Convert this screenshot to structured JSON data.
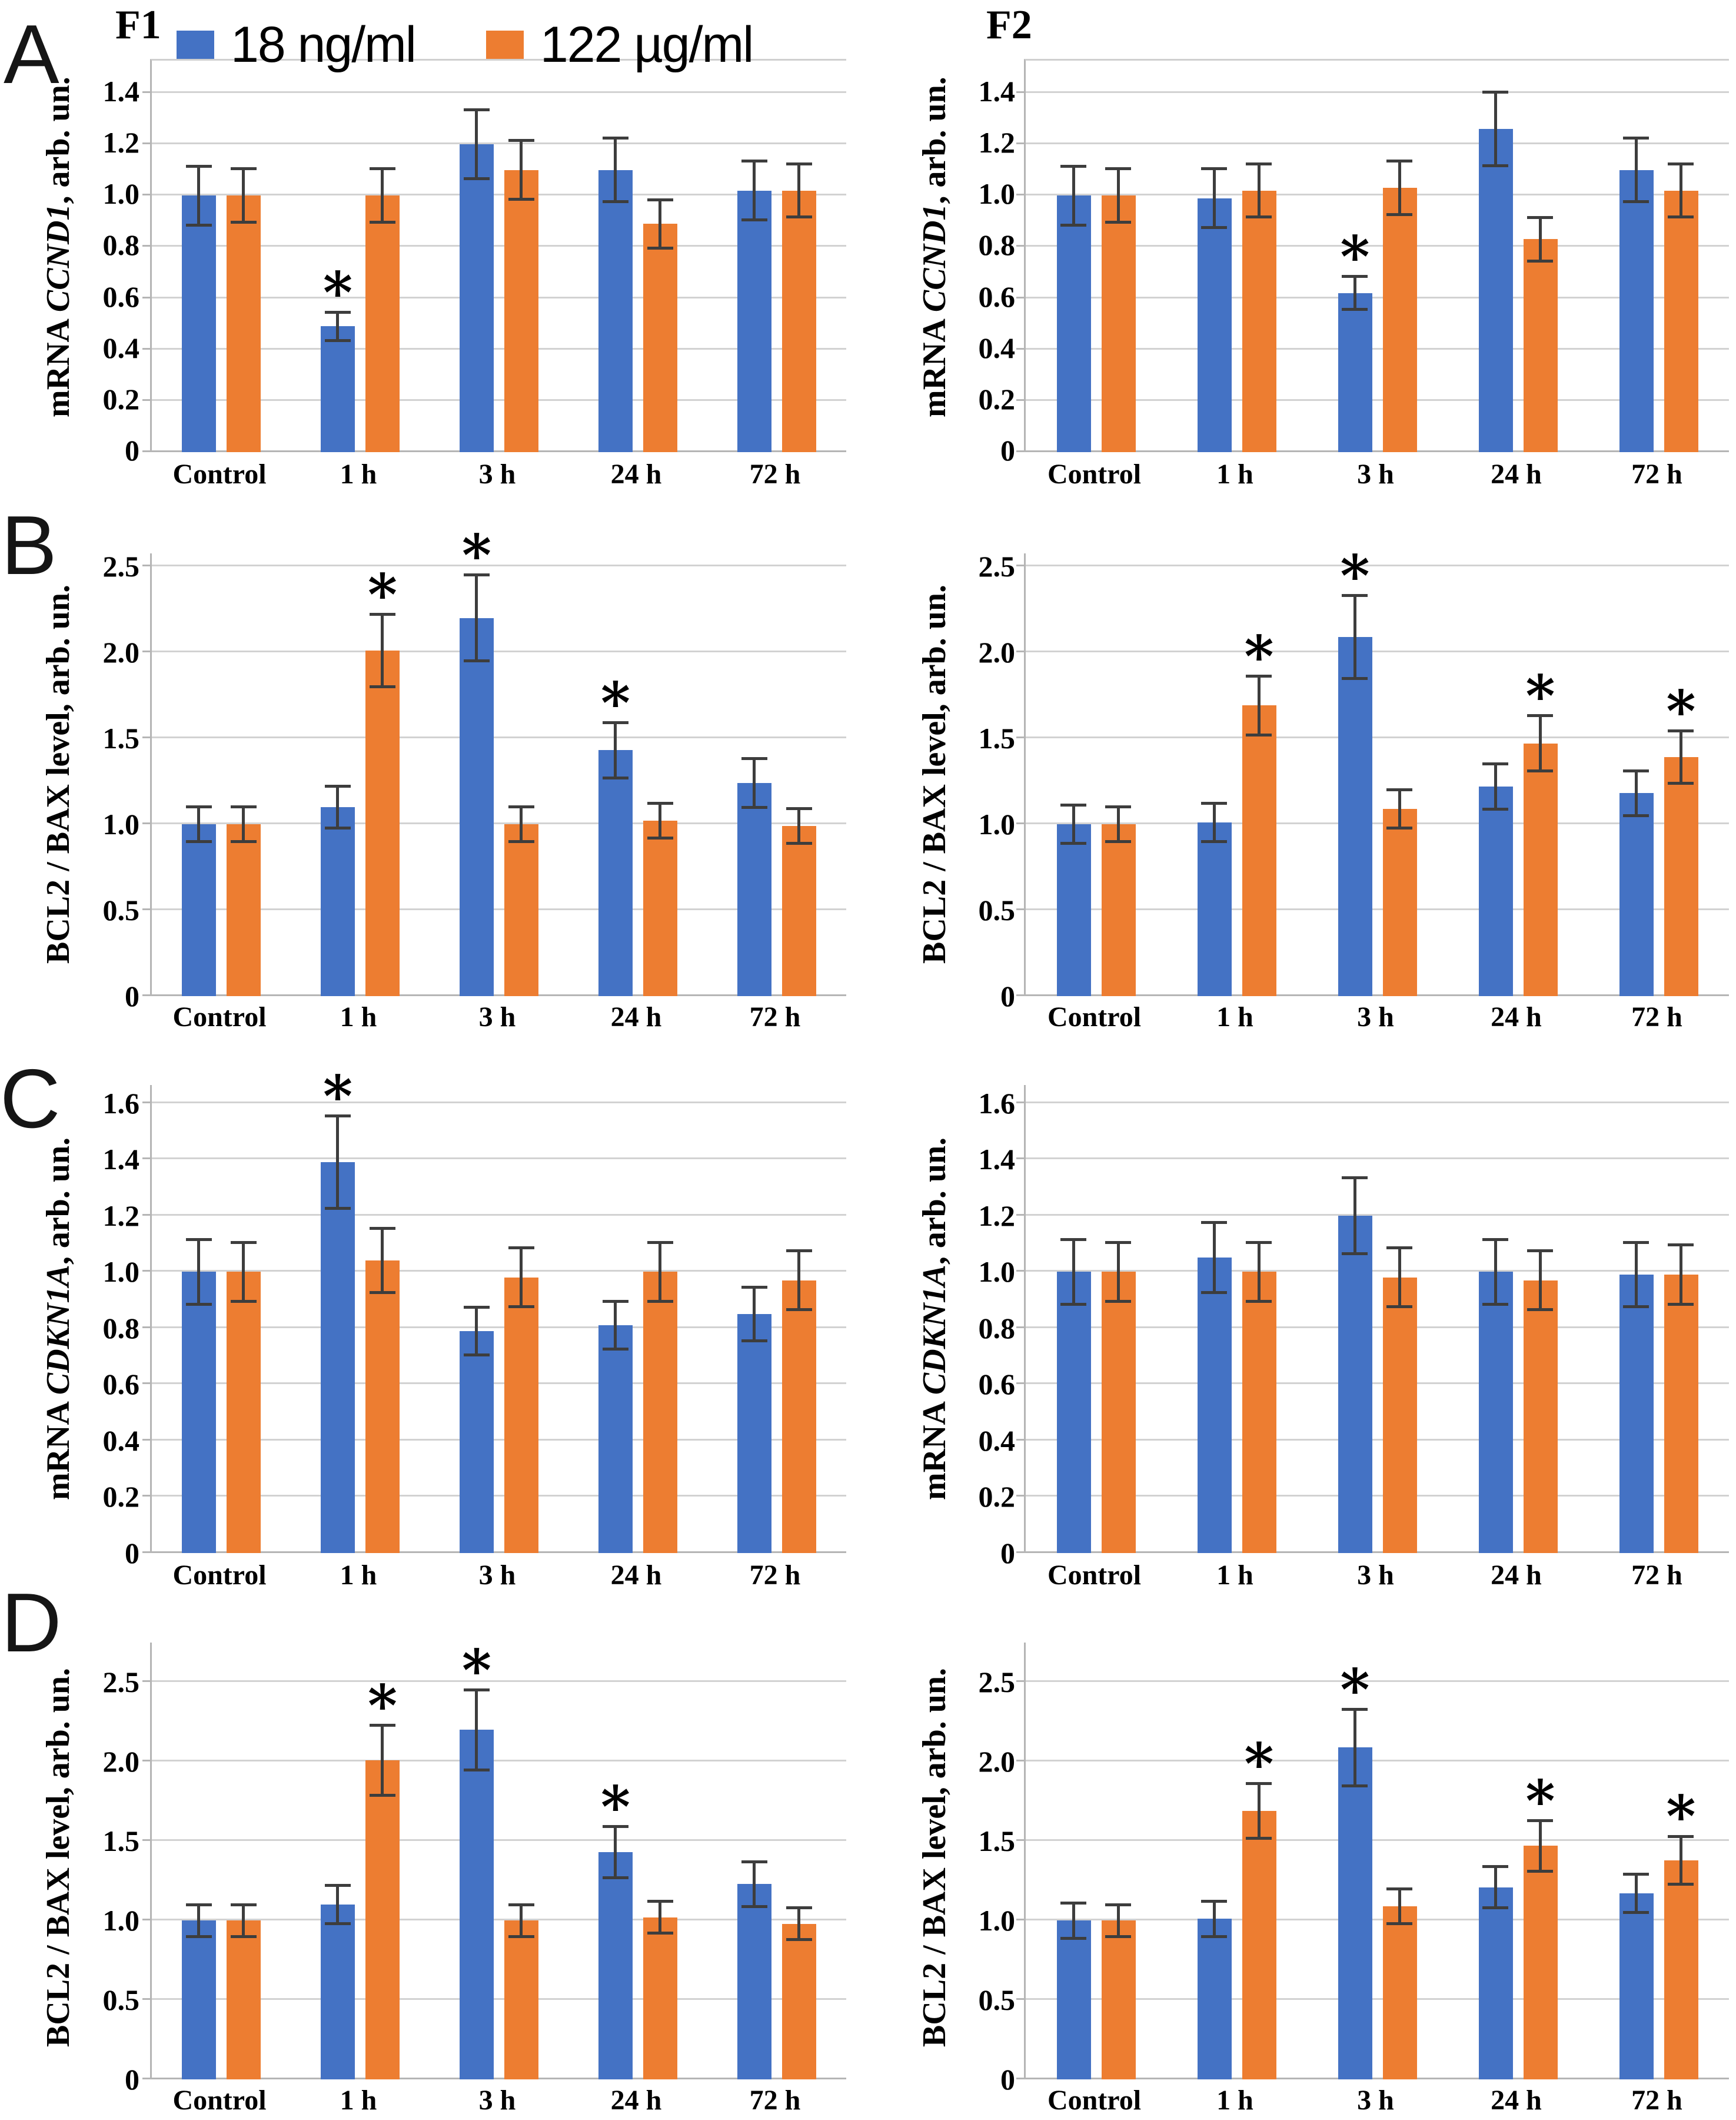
{
  "figure": {
    "panel_letters": [
      "A",
      "B",
      "C",
      "D"
    ],
    "column_labels": [
      "F1",
      "F2"
    ],
    "legend": {
      "items": [
        {
          "label": "18 ng/ml",
          "color": "#4472C4"
        },
        {
          "label": "122 µg/ml",
          "color": "#ED7D31"
        }
      ]
    },
    "colors": {
      "series_blue": "#4472C4",
      "series_orange": "#ED7D31",
      "gridline": "#D2D2D2",
      "axis": "#B5B5B5",
      "error_bar": "#3D3D3D"
    }
  },
  "chart_data": [
    {
      "type": "bar",
      "panel": "A",
      "column": "F1",
      "ylabel": [
        {
          "text": "mRNA ",
          "italic": false
        },
        {
          "text": "CCND1",
          "italic": true
        },
        {
          "text": ", arb. un.",
          "italic": false
        }
      ],
      "ylim": [
        0,
        1.4
      ],
      "headroom": 1.09,
      "grid": true,
      "yticks": [
        "1.4",
        "1.2",
        "1.0",
        "0.8",
        "0.6",
        "0.4",
        "0.2",
        "0"
      ],
      "categories": [
        "Control",
        "1 h",
        "3 h",
        "24 h",
        "72 h"
      ],
      "series": [
        {
          "name": "18 ng/ml",
          "color": "#4472C4",
          "values": [
            1.0,
            0.49,
            1.2,
            1.1,
            1.02
          ],
          "errors": [
            0.12,
            0.06,
            0.14,
            0.13,
            0.12
          ],
          "sig": [
            false,
            true,
            false,
            false,
            false
          ]
        },
        {
          "name": "122 µg/ml",
          "color": "#ED7D31",
          "values": [
            1.0,
            1.0,
            1.1,
            0.89,
            1.02
          ],
          "errors": [
            0.11,
            0.11,
            0.12,
            0.1,
            0.11
          ],
          "sig": [
            false,
            false,
            false,
            false,
            false
          ]
        }
      ]
    },
    {
      "type": "bar",
      "panel": "A",
      "column": "F2",
      "ylabel": [
        {
          "text": "mRNA ",
          "italic": false
        },
        {
          "text": "CCND1",
          "italic": true
        },
        {
          "text": ", arb. un.",
          "italic": false
        }
      ],
      "ylim": [
        0,
        1.4
      ],
      "headroom": 1.09,
      "grid": true,
      "yticks": [
        "1.4",
        "1.2",
        "1.0",
        "0.8",
        "0.6",
        "0.4",
        "0.2",
        "0"
      ],
      "categories": [
        "Control",
        "1 h",
        "3 h",
        "24 h",
        "72 h"
      ],
      "series": [
        {
          "name": "18 ng/ml",
          "color": "#4472C4",
          "values": [
            1.0,
            0.99,
            0.62,
            1.26,
            1.1
          ],
          "errors": [
            0.12,
            0.12,
            0.07,
            0.15,
            0.13
          ],
          "sig": [
            false,
            false,
            true,
            false,
            false
          ]
        },
        {
          "name": "122 µg/ml",
          "color": "#ED7D31",
          "values": [
            1.0,
            1.02,
            1.03,
            0.83,
            1.02
          ],
          "errors": [
            0.11,
            0.11,
            0.11,
            0.09,
            0.11
          ],
          "sig": [
            false,
            false,
            false,
            false,
            false
          ]
        }
      ]
    },
    {
      "type": "bar",
      "panel": "B",
      "column": "F1",
      "ylabel": [
        {
          "text": "BCL2 / BAX level, arb. un.",
          "italic": false
        }
      ],
      "ylim": [
        0,
        2.5
      ],
      "headroom": 1.03,
      "grid": true,
      "yticks": [
        "2.5",
        "2.0",
        "1.5",
        "1.0",
        "0.5",
        "0"
      ],
      "categories": [
        "Control",
        "1 h",
        "3 h",
        "24 h",
        "72 h"
      ],
      "series": [
        {
          "name": "18 ng/ml",
          "color": "#4472C4",
          "values": [
            1.0,
            1.1,
            2.2,
            1.43,
            1.24
          ],
          "errors": [
            0.11,
            0.13,
            0.26,
            0.17,
            0.15
          ],
          "sig": [
            false,
            false,
            true,
            true,
            false
          ]
        },
        {
          "name": "122 µg/ml",
          "color": "#ED7D31",
          "values": [
            1.0,
            2.01,
            1.0,
            1.02,
            0.99
          ],
          "errors": [
            0.11,
            0.22,
            0.11,
            0.11,
            0.11
          ],
          "sig": [
            false,
            true,
            false,
            false,
            false
          ]
        }
      ]
    },
    {
      "type": "bar",
      "panel": "B",
      "column": "F2",
      "ylabel": [
        {
          "text": "BCL2 / BAX level, arb. un.",
          "italic": false
        }
      ],
      "ylim": [
        0,
        2.5
      ],
      "headroom": 1.03,
      "grid": true,
      "yticks": [
        "2.5",
        "2.0",
        "1.5",
        "1.0",
        "0.5",
        "0"
      ],
      "categories": [
        "Control",
        "1 h",
        "3 h",
        "24 h",
        "72 h"
      ],
      "series": [
        {
          "name": "18 ng/ml",
          "color": "#4472C4",
          "values": [
            1.0,
            1.01,
            2.09,
            1.22,
            1.18
          ],
          "errors": [
            0.12,
            0.12,
            0.25,
            0.14,
            0.14
          ],
          "sig": [
            false,
            false,
            true,
            false,
            false
          ]
        },
        {
          "name": "122 µg/ml",
          "color": "#ED7D31",
          "values": [
            1.0,
            1.69,
            1.09,
            1.47,
            1.39
          ],
          "errors": [
            0.11,
            0.18,
            0.12,
            0.17,
            0.16
          ],
          "sig": [
            false,
            true,
            false,
            true,
            true
          ]
        }
      ]
    },
    {
      "type": "bar",
      "panel": "C",
      "column": "F1",
      "ylabel": [
        {
          "text": "mRNA ",
          "italic": false
        },
        {
          "text": "CDKN1A",
          "italic": true
        },
        {
          "text": ", arb. un.",
          "italic": false
        }
      ],
      "ylim": [
        0,
        1.6
      ],
      "headroom": 1.04,
      "grid": true,
      "yticks": [
        "1.6",
        "1.4",
        "1.2",
        "1.0",
        "0.8",
        "0.6",
        "0.4",
        "0.2",
        "0"
      ],
      "categories": [
        "Control",
        "1 h",
        "3 h",
        "24 h",
        "72 h"
      ],
      "series": [
        {
          "name": "18 ng/ml",
          "color": "#4472C4",
          "values": [
            1.0,
            1.39,
            0.79,
            0.81,
            0.85
          ],
          "errors": [
            0.12,
            0.17,
            0.09,
            0.09,
            0.1
          ],
          "sig": [
            false,
            true,
            false,
            false,
            false
          ]
        },
        {
          "name": "122 µg/ml",
          "color": "#ED7D31",
          "values": [
            1.0,
            1.04,
            0.98,
            1.0,
            0.97
          ],
          "errors": [
            0.11,
            0.12,
            0.11,
            0.11,
            0.11
          ],
          "sig": [
            false,
            false,
            false,
            false,
            false
          ]
        }
      ]
    },
    {
      "type": "bar",
      "panel": "C",
      "column": "F2",
      "ylabel": [
        {
          "text": "mRNA ",
          "italic": false
        },
        {
          "text": "CDKN1A",
          "italic": true
        },
        {
          "text": ", arb. un.",
          "italic": false
        }
      ],
      "ylim": [
        0,
        1.6
      ],
      "headroom": 1.04,
      "grid": true,
      "yticks": [
        "1.6",
        "1.4",
        "1.2",
        "1.0",
        "0.8",
        "0.6",
        "0.4",
        "0.2",
        "0"
      ],
      "categories": [
        "Control",
        "1 h",
        "3 h",
        "24 h",
        "72 h"
      ],
      "series": [
        {
          "name": "18 ng/ml",
          "color": "#4472C4",
          "values": [
            1.0,
            1.05,
            1.2,
            1.0,
            0.99
          ],
          "errors": [
            0.12,
            0.13,
            0.14,
            0.12,
            0.12
          ],
          "sig": [
            false,
            false,
            false,
            false,
            false
          ]
        },
        {
          "name": "122 µg/ml",
          "color": "#ED7D31",
          "values": [
            1.0,
            1.0,
            0.98,
            0.97,
            0.99
          ],
          "errors": [
            0.11,
            0.11,
            0.11,
            0.11,
            0.11
          ],
          "sig": [
            false,
            false,
            false,
            false,
            false
          ]
        }
      ]
    },
    {
      "type": "bar",
      "panel": "D",
      "column": "F1",
      "ylabel": [
        {
          "text": "BCL2 / BAX level, arb. un.",
          "italic": false
        }
      ],
      "ylim": [
        0,
        2.5
      ],
      "headroom": 1.1,
      "grid": true,
      "yticks": [
        "2.5",
        "2.0",
        "1.5",
        "1.0",
        "0.5",
        "0"
      ],
      "categories": [
        "Control",
        "1 h",
        "3 h",
        "24 h",
        "72 h"
      ],
      "series": [
        {
          "name": "18 ng/ml",
          "color": "#4472C4",
          "values": [
            1.0,
            1.1,
            2.2,
            1.43,
            1.23
          ],
          "errors": [
            0.11,
            0.13,
            0.26,
            0.17,
            0.15
          ],
          "sig": [
            false,
            false,
            true,
            true,
            false
          ]
        },
        {
          "name": "122 µg/ml",
          "color": "#ED7D31",
          "values": [
            1.0,
            2.01,
            1.0,
            1.02,
            0.98
          ],
          "errors": [
            0.11,
            0.23,
            0.11,
            0.11,
            0.11
          ],
          "sig": [
            false,
            true,
            false,
            false,
            false
          ]
        }
      ]
    },
    {
      "type": "bar",
      "panel": "D",
      "column": "F2",
      "ylabel": [
        {
          "text": "BCL2 / BAX level, arb. un.",
          "italic": false
        }
      ],
      "ylim": [
        0,
        2.5
      ],
      "headroom": 1.1,
      "grid": true,
      "yticks": [
        "2.5",
        "2.0",
        "1.5",
        "1.0",
        "0.5",
        "0"
      ],
      "categories": [
        "Control",
        "1 h",
        "3 h",
        "24 h",
        "72 h"
      ],
      "series": [
        {
          "name": "18 ng/ml",
          "color": "#4472C4",
          "values": [
            1.0,
            1.01,
            2.09,
            1.21,
            1.17
          ],
          "errors": [
            0.12,
            0.12,
            0.25,
            0.14,
            0.13
          ],
          "sig": [
            false,
            false,
            true,
            false,
            false
          ]
        },
        {
          "name": "122 µg/ml",
          "color": "#ED7D31",
          "values": [
            1.0,
            1.69,
            1.09,
            1.47,
            1.38
          ],
          "errors": [
            0.11,
            0.18,
            0.12,
            0.17,
            0.16
          ],
          "sig": [
            false,
            true,
            false,
            true,
            true
          ]
        }
      ]
    }
  ]
}
